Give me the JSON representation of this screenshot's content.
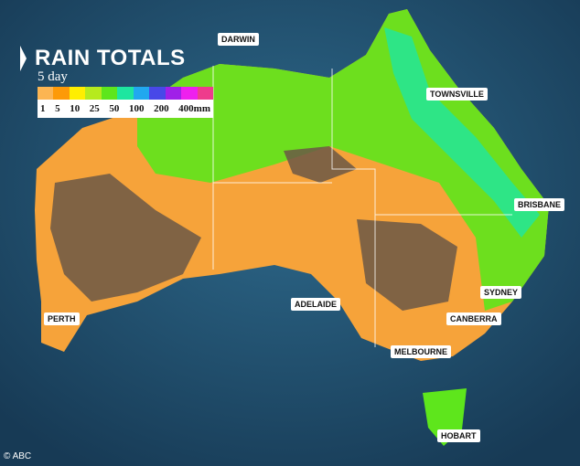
{
  "title": "RAIN TOTALS",
  "subtitle": "5 day",
  "legend": {
    "colors": [
      "#fcb552",
      "#fd9a08",
      "#ffee00",
      "#b6ea1e",
      "#5ee61c",
      "#1ee6a0",
      "#21a8ef",
      "#4848e8",
      "#a020e8",
      "#ee20ee",
      "#ee3c8c"
    ],
    "labels": [
      "1",
      "5",
      "10",
      "25",
      "50",
      "100",
      "200",
      "400mm"
    ]
  },
  "cities": [
    "DARWIN",
    "TOWNSVILLE",
    "BRISBANE",
    "SYDNEY",
    "CANBERRA",
    "MELBOURNE",
    "ADELAIDE",
    "PERTH",
    "HOBART"
  ],
  "credit": "© ABC"
}
